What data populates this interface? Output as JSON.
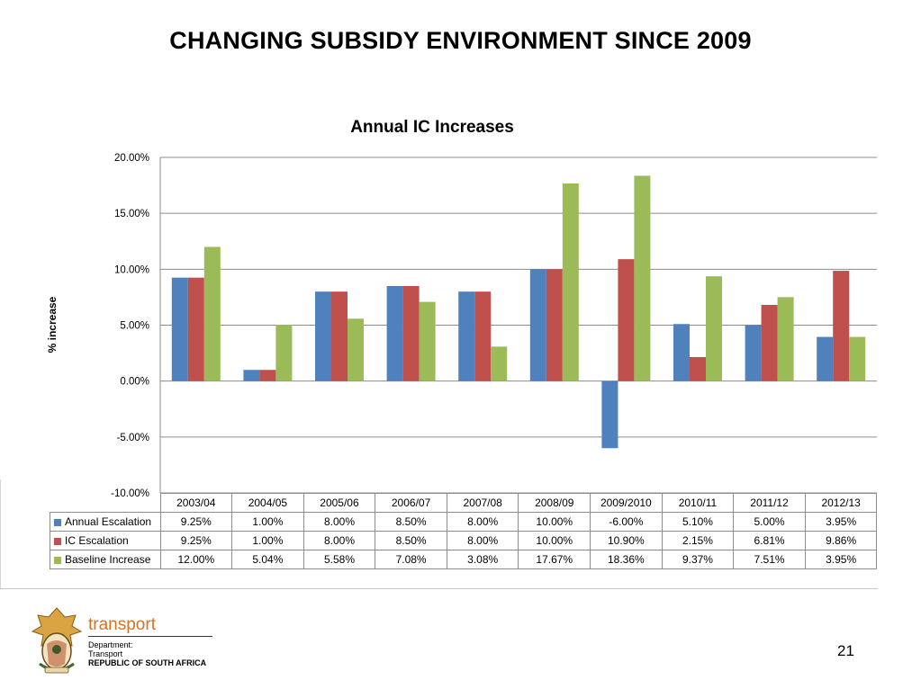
{
  "slide": {
    "title": "CHANGING SUBSIDY ENVIRONMENT SINCE 2009",
    "page_number": "21"
  },
  "logo": {
    "brand": "transport",
    "department_line1": "Department:",
    "department_line2": "Transport",
    "country": "REPUBLIC OF SOUTH AFRICA"
  },
  "colors": {
    "annual_escalation": "#4f81bd",
    "ic_escalation": "#c0504d",
    "baseline_increase": "#9bbb59",
    "brand_orange": "#d57224"
  },
  "chart_data": {
    "type": "bar",
    "title": "Annual IC Increases",
    "xlabel": "",
    "ylabel": "% increase",
    "ylim": [
      -10,
      20
    ],
    "yticks": [
      20,
      15,
      10,
      5,
      0,
      -5,
      -10
    ],
    "ytick_labels": [
      "20.00%",
      "15.00%",
      "10.00%",
      "5.00%",
      "0.00%",
      "-5.00%",
      "-10.00%"
    ],
    "grid": true,
    "legend": "data-table",
    "categories": [
      "2003/04",
      "2004/05",
      "2005/06",
      "2006/07",
      "2007/08",
      "2008/09",
      "2009/2010",
      "2010/11",
      "2011/12",
      "2012/13"
    ],
    "series": [
      {
        "name": "Annual Escalation",
        "color": "#4f81bd",
        "values": [
          9.25,
          1.0,
          8.0,
          8.5,
          8.0,
          10.0,
          -6.0,
          5.1,
          5.0,
          3.95
        ],
        "labels": [
          "9.25%",
          "1.00%",
          "8.00%",
          "8.50%",
          "8.00%",
          "10.00%",
          "-6.00%",
          "5.10%",
          "5.00%",
          "3.95%"
        ]
      },
      {
        "name": "IC Escalation",
        "color": "#c0504d",
        "values": [
          9.25,
          1.0,
          8.0,
          8.5,
          8.0,
          10.0,
          10.9,
          2.15,
          6.81,
          9.86
        ],
        "labels": [
          "9.25%",
          "1.00%",
          "8.00%",
          "8.50%",
          "8.00%",
          "10.00%",
          "10.90%",
          "2.15%",
          "6.81%",
          "9.86%"
        ]
      },
      {
        "name": "Baseline Increase",
        "color": "#9bbb59",
        "values": [
          12.0,
          5.04,
          5.58,
          7.08,
          3.08,
          17.67,
          18.36,
          9.37,
          7.51,
          3.95
        ],
        "labels": [
          "12.00%",
          "5.04%",
          "5.58%",
          "7.08%",
          "3.08%",
          "17.67%",
          "18.36%",
          "9.37%",
          "7.51%",
          "3.95%"
        ]
      }
    ]
  }
}
